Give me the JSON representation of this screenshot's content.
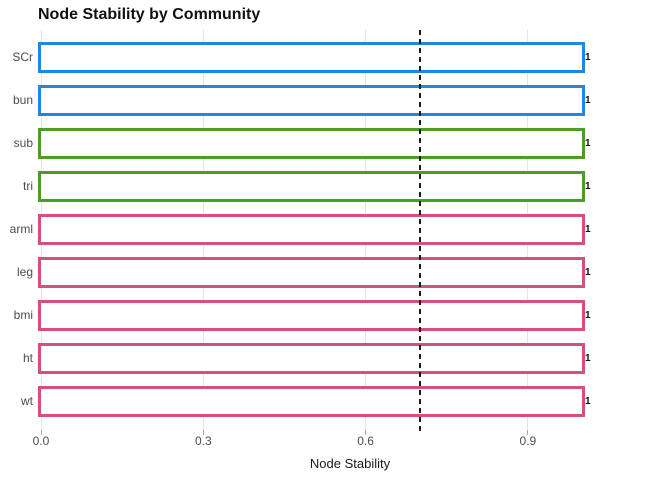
{
  "chart_data": {
    "type": "bar",
    "orientation": "horizontal",
    "title": "Node Stability by Community",
    "xlabel": "Node Stability",
    "ylabel": "",
    "categories": [
      "SCr",
      "bun",
      "sub",
      "tri",
      "arml",
      "leg",
      "bmi",
      "ht",
      "wt"
    ],
    "values": [
      1,
      1,
      1,
      1,
      1,
      1,
      1,
      1,
      1
    ],
    "value_labels": [
      "1",
      "1",
      "1",
      "1",
      "1",
      "1",
      "1",
      "1",
      "1"
    ],
    "communities": [
      "blue",
      "blue",
      "green",
      "green",
      "pink",
      "pink",
      "pink",
      "pink",
      "pink"
    ],
    "community_colors": {
      "blue": "#1E88E0",
      "green": "#4C9E23",
      "pink": "#D6517A"
    },
    "bar_fill": "#FFFFFF",
    "xlim": [
      0,
      1.15
    ],
    "x_ticks": [
      0.0,
      0.3,
      0.6,
      0.9
    ],
    "x_tick_labels": [
      "0.0",
      "0.3",
      "0.6",
      "0.9"
    ],
    "reference_line": {
      "x": 0.7,
      "style": "dashed",
      "color": "#1A1A1A"
    },
    "grid": "major-x",
    "gridline_color": "#E4E4E4",
    "legend": "none"
  }
}
